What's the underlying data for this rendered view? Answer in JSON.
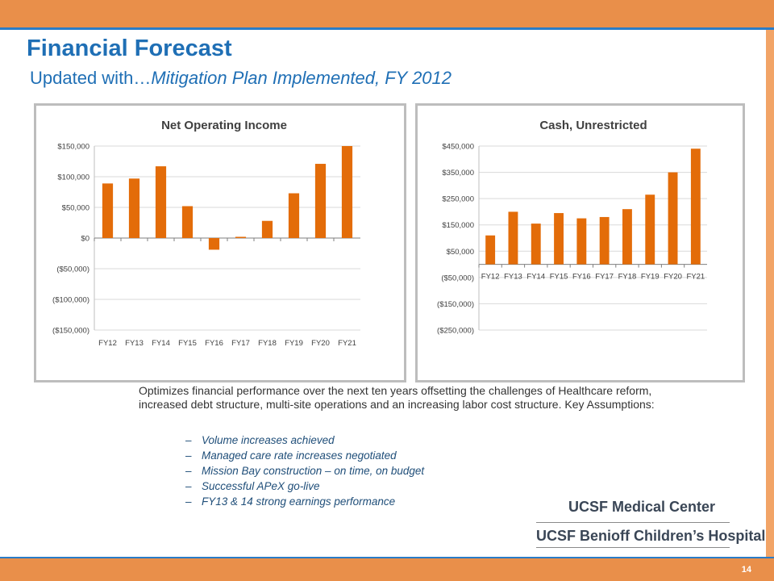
{
  "page": {
    "title": "Financial Forecast",
    "subtitle_lead": "Updated with…",
    "subtitle_italic": "Mitigation Plan Implemented, FY 2012",
    "page_number": "14"
  },
  "description": {
    "text": "Optimizes financial performance over the next ten years offsetting the challenges of Healthcare reform, increased debt structure, multi-site operations and an increasing labor cost structure. Key Assumptions:",
    "bullets": [
      "Volume increases achieved",
      "Managed care rate increases negotiated",
      "Mission Bay construction – on time, on budget",
      "Successful APeX go-live",
      "FY13 & 14 strong earnings performance"
    ]
  },
  "logo": {
    "line1": "UCSF Medical Center",
    "line2": "UCSF Benioff Children’s Hospital"
  },
  "colors": {
    "bar": "#e36c09",
    "title": "#1f6fb5",
    "band": "#e98f4a",
    "rule": "#2a7cc7"
  },
  "chart_data": [
    {
      "type": "bar",
      "title": "Net Operating Income",
      "categories": [
        "FY12",
        "FY13",
        "FY14",
        "FY15",
        "FY16",
        "FY17",
        "FY18",
        "FY19",
        "FY20",
        "FY21"
      ],
      "values": [
        89000,
        97000,
        117000,
        52000,
        -19000,
        2000,
        28000,
        73000,
        121000,
        150000
      ],
      "ylim": [
        -150000,
        150000
      ],
      "ticks": [
        150000,
        100000,
        50000,
        0,
        -50000,
        -100000,
        -150000
      ],
      "tick_labels": [
        "$150,000",
        "$100,000",
        "$50,000",
        "$0",
        "($50,000)",
        "($100,000)",
        "($150,000)"
      ],
      "grid": true,
      "category_axis": "bottom"
    },
    {
      "type": "bar",
      "title": "Cash, Unrestricted",
      "categories": [
        "FY12",
        "FY13",
        "FY14",
        "FY15",
        "FY16",
        "FY17",
        "FY18",
        "FY19",
        "FY20",
        "FY21"
      ],
      "values": [
        110000,
        200000,
        155000,
        195000,
        175000,
        180000,
        210000,
        265000,
        350000,
        440000
      ],
      "ylim": [
        -250000,
        450000
      ],
      "ticks": [
        450000,
        350000,
        250000,
        150000,
        50000,
        -50000,
        -150000,
        -250000
      ],
      "tick_labels": [
        "$450,000",
        "$350,000",
        "$250,000",
        "$150,000",
        "$50,000",
        "($50,000)",
        "($150,000)",
        "($250,000)"
      ],
      "grid": true,
      "category_axis": "zero"
    }
  ]
}
